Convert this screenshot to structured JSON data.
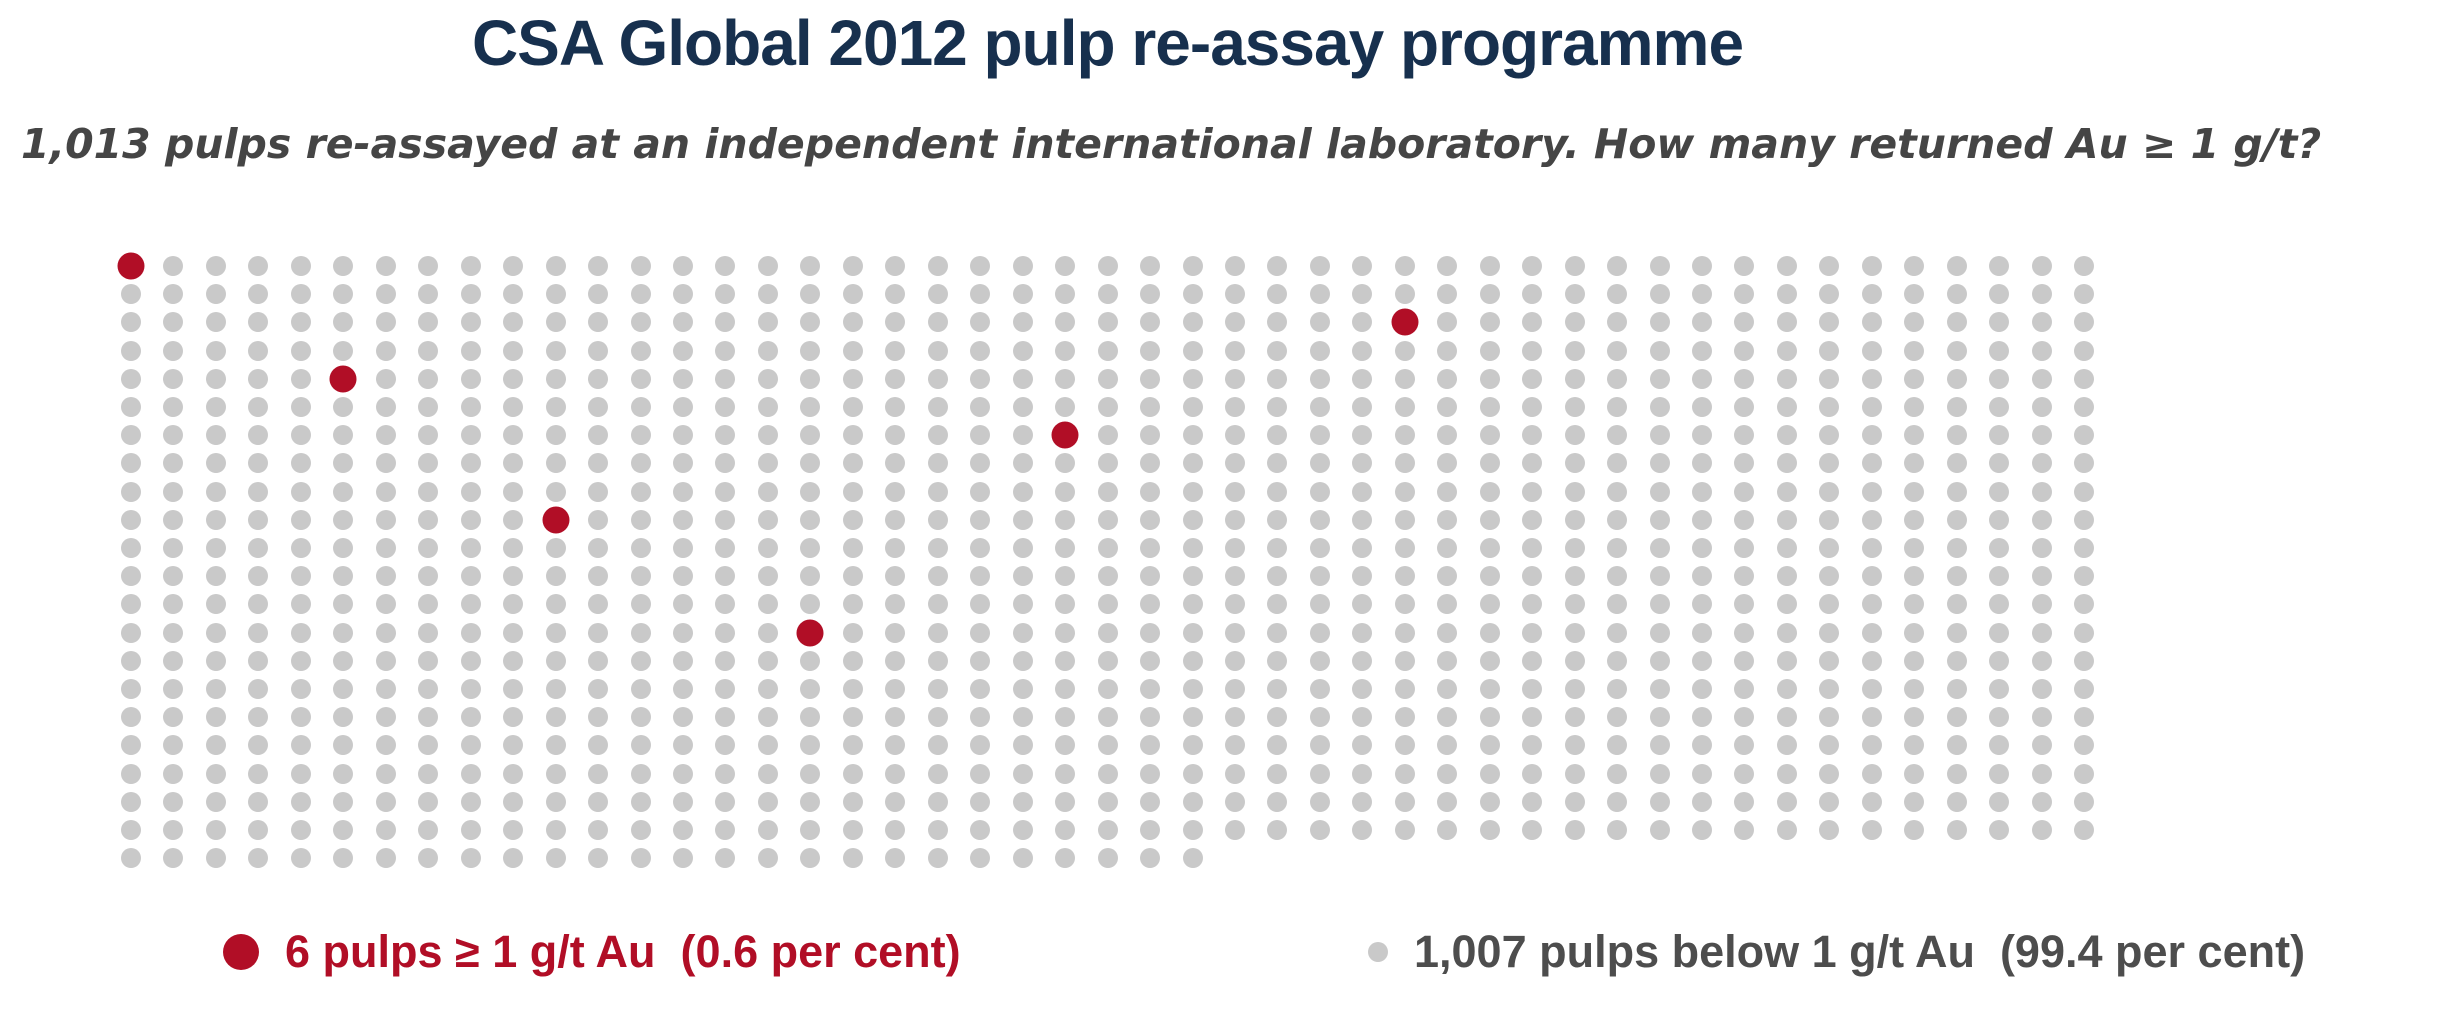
{
  "header": {
    "title": "CSA Global 2012 pulp re-assay programme",
    "subtitle": "1,013 pulps re-assayed at an independent international laboratory. How many returned Au ≥ 1 g/t?"
  },
  "chart_data": {
    "type": "waffle",
    "title": "CSA Global 2012 pulp re-assay programme",
    "total_dots": 1013,
    "grid": {
      "rows": 22,
      "cols": 47,
      "last_row_dots": 26,
      "fill_order": "row-major"
    },
    "categories": [
      {
        "name": "pulps ≥ 1 g/t Au",
        "count": 6,
        "percent": 0.6,
        "color": "#b10e26"
      },
      {
        "name": "pulps below 1 g/t Au",
        "count": 1007,
        "percent": 99.4,
        "color": "#c9c9c9"
      }
    ],
    "highlight_positions_row_col": [
      [
        1,
        1
      ],
      [
        3,
        31
      ],
      [
        5,
        6
      ],
      [
        7,
        23
      ],
      [
        10,
        11
      ],
      [
        14,
        17
      ]
    ],
    "legend_position": "bottom"
  },
  "legend": {
    "above": {
      "label": "6 pulps ≥ 1 g/t Au  (0.6 per cent)",
      "color": "#b10e26"
    },
    "below": {
      "label": "1,007 pulps below 1 g/t Au  (99.4 per cent)",
      "color": "#4d4d4d"
    }
  },
  "colors": {
    "title": "#17304e",
    "subtitle": "#454545",
    "dot_above": "#b10e26",
    "dot_below": "#c9c9c9",
    "background": "#ffffff"
  }
}
